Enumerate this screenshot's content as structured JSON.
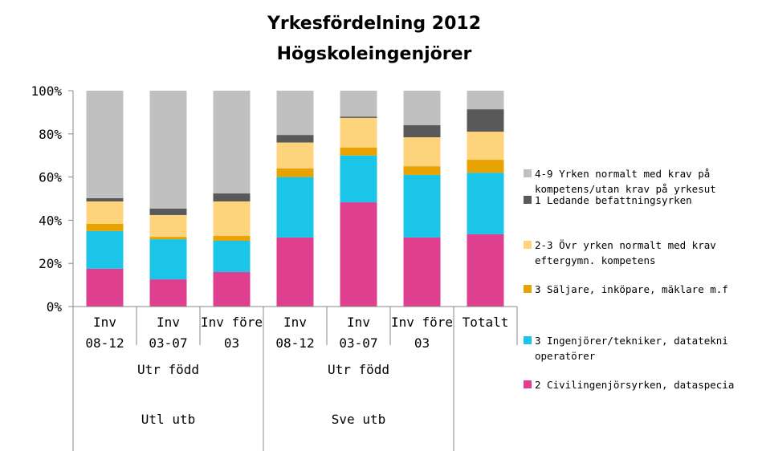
{
  "chart_data": {
    "type": "stacked_bar",
    "title": "Yrkesfördelning 2012",
    "subtitle": "Högskoleingenjörer",
    "groups": [
      {
        "name": "Utl utb",
        "subgroups": [
          {
            "name": "Utr född",
            "categories": [
              "Inv\n08-12",
              "Inv\n03-07",
              "Inv före\n03"
            ]
          }
        ]
      },
      {
        "name": "Sve utb",
        "subgroups": [
          {
            "name": "Utr född",
            "categories": [
              "Inv\n08-12",
              "Inv\n03-07",
              "Inv före\n03"
            ]
          }
        ]
      },
      {
        "categories": [
          "Totalt"
        ]
      }
    ],
    "series": [
      {
        "name": "2 Civilingenjörsyrken, dataspecia",
        "color": "#de3f8e",
        "values": [
          17.5,
          12.6,
          16.0,
          32.0,
          48.3,
          32.0,
          33.5
        ]
      },
      {
        "name": "3 Ingenjörer/tekniker, datatekni\noperatörer",
        "color": "#1bc5e8",
        "values": [
          17.5,
          18.6,
          14.5,
          28.0,
          21.7,
          29.0,
          28.5
        ]
      },
      {
        "name": "3 Säljare, inköpare, mäklare m.f",
        "color": "#e8a202",
        "values": [
          3.3,
          1.1,
          2.2,
          4.0,
          3.6,
          4.0,
          6.0
        ]
      },
      {
        "name": "2-3 Övr yrken normalt med krav\neftergymn. kompetens",
        "color": "#fdd47c",
        "values": [
          10.4,
          10.1,
          16.0,
          12.0,
          13.8,
          13.4,
          13.0
        ]
      },
      {
        "name": "1 Ledande befattningsyrken",
        "color": "#595959",
        "values": [
          1.5,
          3.0,
          3.7,
          3.5,
          0.6,
          5.6,
          10.4
        ]
      },
      {
        "name": "4-9 Yrken normalt med krav på\nkompetens/utan krav på yrkesut",
        "color": "#c0c0c0",
        "values": [
          49.8,
          54.6,
          47.6,
          20.5,
          12.0,
          16.0,
          8.6
        ]
      }
    ],
    "ylim": [
      0,
      100
    ],
    "yticks": [
      {
        "value": 0,
        "label": "0%"
      },
      {
        "value": 20,
        "label": "20%"
      },
      {
        "value": 40,
        "label": "40%"
      },
      {
        "value": 60,
        "label": "60%"
      },
      {
        "value": 80,
        "label": "80%"
      },
      {
        "value": 100,
        "label": "100%"
      }
    ],
    "legend": "right"
  }
}
